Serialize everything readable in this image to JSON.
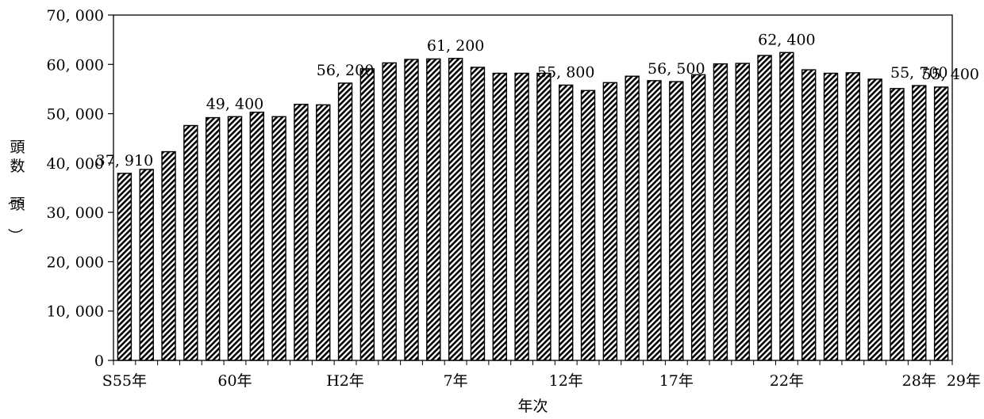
{
  "chart_data": {
    "type": "bar",
    "xlabel": "年次",
    "ylabel": "頭数（頭）",
    "ylim": [
      0,
      70000
    ],
    "ytick_step": 10000,
    "yticks": [
      "0",
      "10, 000",
      "20, 000",
      "30, 000",
      "40, 000",
      "50, 000",
      "60, 000",
      "70, 000"
    ],
    "legend": "none",
    "grid": false,
    "bar_pattern": "diagonal-hatch",
    "bar_color": "#000000",
    "categories": [
      "S55年",
      "",
      "",
      "",
      "",
      "60年",
      "",
      "",
      "",
      "",
      "H2年",
      "",
      "",
      "",
      "",
      "7年",
      "",
      "",
      "",
      "",
      "12年",
      "",
      "",
      "",
      "",
      "17年",
      "",
      "",
      "",
      "",
      "22年",
      "",
      "",
      "",
      "",
      "",
      "28年",
      "29年"
    ],
    "values": [
      37910,
      38700,
      42300,
      47600,
      49200,
      49400,
      50300,
      49400,
      51900,
      51800,
      56200,
      59100,
      60300,
      61000,
      61100,
      61200,
      59400,
      58200,
      58200,
      58200,
      55800,
      54700,
      56300,
      57600,
      56700,
      56500,
      57900,
      60100,
      60200,
      61800,
      62400,
      58900,
      58200,
      58300,
      57000,
      55100,
      55700,
      55400
    ],
    "data_labels": [
      {
        "index": 0,
        "text": "37, 910"
      },
      {
        "index": 5,
        "text": "49, 400"
      },
      {
        "index": 10,
        "text": "56, 200"
      },
      {
        "index": 15,
        "text": "61, 200"
      },
      {
        "index": 20,
        "text": "55, 800"
      },
      {
        "index": 25,
        "text": "56, 500"
      },
      {
        "index": 30,
        "text": "62, 400"
      },
      {
        "index": 36,
        "text": "55, 700"
      },
      {
        "index": 37,
        "text": "55, 400"
      }
    ]
  }
}
